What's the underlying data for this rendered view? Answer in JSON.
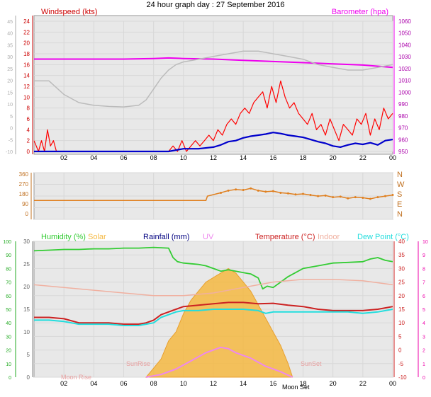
{
  "page_title": "24 hour graph day : 27 September 2016",
  "colors": {
    "wind": "#ff0000",
    "gust_tail": "#ee0000",
    "wind_avg": "#0000cc",
    "baro": "#ee00ee",
    "temp_in": "#bbbbbb",
    "wdir": "#e08020",
    "humidity": "#33cc33",
    "solar": "#f5b942",
    "rain": "#000080",
    "uv": "#ee88ee",
    "temperature": "#cc2222",
    "indoor": "#f0b0a0",
    "dewpoint": "#22dddd",
    "grid": "#d8d8d8",
    "panel": "#e8e8e8",
    "left_scale": "#aaaaaa",
    "left_scale_bottom": "#22aa22",
    "right_scale_bottom": "#ee00aa",
    "mid_scale_bottom": "#808080"
  },
  "chart_data": [
    {
      "type": "line",
      "id": "wind-baro",
      "title": "24 hour graph day : 27 September 2016",
      "left_axis_label": "Windspeed (kts)",
      "right_axis_label": "Barometer (hpa)",
      "x_ticks": [
        "02",
        "04",
        "06",
        "08",
        "10",
        "12",
        "14",
        "16",
        "18",
        "20",
        "22",
        "00"
      ],
      "x_range": [
        0,
        24
      ],
      "outer_left_ticks": [
        "45",
        "40",
        "35",
        "30",
        "25",
        "20",
        "15",
        "10",
        "5",
        "0",
        "-5",
        "-10"
      ],
      "left_ticks": [
        "24",
        "22",
        "20",
        "18",
        "16",
        "14",
        "12",
        "10",
        "8",
        "6",
        "4",
        "2",
        "0"
      ],
      "left_range": [
        0,
        24
      ],
      "right_ticks": [
        "1060",
        "1050",
        "1040",
        "1030",
        "1020",
        "1010",
        "1000",
        "990",
        "980",
        "970",
        "960",
        "950"
      ],
      "right_range": [
        950,
        1060
      ],
      "series": [
        {
          "name": "Windspeed (kts)",
          "key": "wind",
          "x": [
            0,
            0.3,
            0.5,
            0.7,
            0.9,
            1.1,
            1.3,
            1.5,
            1.6,
            9.0,
            9.3,
            9.6,
            9.9,
            10.2,
            10.5,
            10.8,
            11.1,
            11.4,
            11.7,
            12.0,
            12.3,
            12.6,
            12.9,
            13.2,
            13.5,
            13.8,
            14.1,
            14.4,
            14.7,
            15.0,
            15.3,
            15.6,
            15.9,
            16.2,
            16.5,
            16.8,
            17.1,
            17.4,
            17.7,
            18.0,
            18.3,
            18.6,
            18.9,
            19.2,
            19.5,
            19.8,
            20.1,
            20.4,
            20.7,
            21.0,
            21.3,
            21.6,
            21.9,
            22.2,
            22.5,
            22.8,
            23.1,
            23.4,
            23.7,
            24.0
          ],
          "y": [
            2,
            0,
            2,
            0,
            4,
            1,
            2,
            0,
            0,
            0,
            1,
            0,
            2,
            0,
            1,
            2,
            1,
            2,
            3,
            2,
            4,
            3,
            5,
            6,
            5,
            7,
            8,
            7,
            9,
            10,
            11,
            8,
            12,
            9,
            13,
            10,
            8,
            9,
            7,
            6,
            5,
            7,
            4,
            5,
            3,
            6,
            4,
            2,
            5,
            4,
            3,
            6,
            5,
            7,
            3,
            6,
            4,
            8,
            6,
            7
          ]
        },
        {
          "name": "Wind average",
          "key": "wind_avg",
          "x": [
            0,
            9.0,
            10.0,
            11.0,
            12.0,
            12.5,
            13.0,
            13.5,
            14.0,
            14.5,
            15.0,
            15.5,
            16.0,
            16.5,
            17.0,
            17.5,
            18.0,
            18.5,
            19.0,
            19.5,
            20.0,
            20.5,
            21.0,
            21.5,
            22.0,
            22.5,
            23.0,
            23.5,
            24.0
          ],
          "y": [
            0,
            0,
            0.5,
            0.5,
            0.8,
            1.2,
            1.8,
            2.0,
            2.5,
            2.8,
            3.0,
            3.2,
            3.5,
            3.3,
            3.0,
            2.8,
            2.6,
            2.2,
            1.8,
            1.5,
            1.0,
            0.8,
            1.2,
            1.5,
            1.3,
            1.6,
            1.2,
            2.0,
            2.2
          ]
        },
        {
          "name": "Barometer (hpa)",
          "key": "baro",
          "x": [
            0,
            2,
            4,
            6,
            8,
            9,
            10,
            12,
            14,
            16,
            18,
            20,
            22,
            24
          ],
          "y": [
            1028,
            1028,
            1028,
            1028,
            1028.5,
            1029,
            1028.5,
            1028,
            1027,
            1026,
            1025,
            1024,
            1023,
            1021
          ]
        },
        {
          "name": "Indoor",
          "key": "temp_in",
          "x": [
            0,
            1,
            2,
            3,
            4,
            5,
            6,
            7,
            7.5,
            8,
            8.5,
            9,
            9.5,
            10,
            11,
            12,
            13,
            14,
            15,
            16,
            17,
            18,
            19,
            20,
            21,
            22,
            23,
            24
          ],
          "y": [
            13,
            13,
            10.5,
            9,
            8.5,
            8.3,
            8.2,
            8.5,
            9.5,
            11.5,
            13.5,
            15,
            16,
            16.5,
            17,
            17.5,
            18,
            18.5,
            18.5,
            18,
            17.5,
            17,
            16,
            15.5,
            15,
            15,
            15.5,
            16
          ]
        }
      ]
    },
    {
      "type": "scatter",
      "id": "wind-direction",
      "left_ticks": [
        "360",
        "270",
        "180",
        "90",
        "0"
      ],
      "left_range": [
        0,
        360
      ],
      "right_ticks": [
        "N",
        "W",
        "S",
        "E",
        "N"
      ],
      "x_range": [
        0,
        24
      ],
      "series": [
        {
          "name": "Wind direction",
          "key": "wdir",
          "x": [
            0,
            2,
            4,
            6,
            8,
            10,
            11.5,
            11.6,
            12.5,
            13,
            13.5,
            14,
            14.5,
            15,
            15.5,
            16,
            16.5,
            17,
            17.5,
            18,
            18.5,
            19,
            19.5,
            20,
            20.5,
            21,
            21.5,
            22,
            22.5,
            23,
            23.5,
            24
          ],
          "y": [
            120,
            120,
            120,
            120,
            120,
            120,
            120,
            160,
            190,
            210,
            220,
            215,
            230,
            210,
            200,
            205,
            190,
            185,
            175,
            180,
            170,
            160,
            165,
            150,
            155,
            140,
            150,
            145,
            135,
            150,
            160,
            170
          ]
        }
      ]
    },
    {
      "type": "line",
      "id": "multi",
      "legend": [
        {
          "label": "Humidity (%)",
          "key": "humidity"
        },
        {
          "label": "Solar",
          "key": "solar"
        },
        {
          "label": "Rainfall (mm)",
          "key": "rain"
        },
        {
          "label": "UV",
          "key": "uv"
        },
        {
          "label": "Temperature (°C)",
          "key": "temperature"
        },
        {
          "label": "Indoor",
          "key": "indoor"
        },
        {
          "label": "Dew Point (°C)",
          "key": "dewpoint"
        }
      ],
      "x_ticks": [
        "02",
        "04",
        "06",
        "08",
        "10",
        "12",
        "14",
        "16",
        "18",
        "20",
        "22",
        "00"
      ],
      "x_range": [
        0,
        24
      ],
      "outer_left_ticks": [
        "100",
        "90",
        "80",
        "70",
        "60",
        "50",
        "40",
        "30",
        "20",
        "10",
        "0"
      ],
      "left_ticks": [
        "30",
        "25",
        "20",
        "15",
        "10",
        "5",
        "0"
      ],
      "right_ticks": [
        "40",
        "35",
        "30",
        "25",
        "20",
        "15",
        "10",
        "5",
        "0",
        "-5",
        "-10"
      ],
      "right_range": [
        -10,
        40
      ],
      "outer_right_ticks": [
        "10",
        "9",
        "8",
        "7",
        "6",
        "5",
        "4",
        "3",
        "2",
        "1",
        "0"
      ],
      "annotations": [
        "Moon Rise",
        "SunRise",
        "SunSet",
        "Moon Set"
      ],
      "series": [
        {
          "name": "Humidity (%)",
          "key": "humidity",
          "x": [
            0,
            1,
            2,
            3,
            4,
            5,
            6,
            7,
            8,
            9,
            9.3,
            9.6,
            10,
            10.5,
            11,
            11.5,
            12,
            12.5,
            13,
            13.5,
            14,
            14.5,
            15,
            15.3,
            15.6,
            16,
            16.5,
            17,
            17.5,
            18,
            19,
            20,
            21,
            22,
            22.5,
            23,
            23.5,
            24
          ],
          "y": [
            93,
            93.5,
            94,
            94,
            94.5,
            94.5,
            95,
            95,
            95.5,
            95,
            88,
            85,
            84,
            83.5,
            83,
            82,
            80,
            78,
            79,
            78,
            77,
            76,
            73,
            65,
            67,
            66,
            70,
            74,
            77,
            80,
            82,
            84,
            84.5,
            85,
            87,
            88,
            86,
            85
          ]
        },
        {
          "name": "Solar",
          "key": "solar",
          "x": [
            7.5,
            8,
            8.5,
            9,
            9.5,
            10,
            10.5,
            11,
            11.5,
            12,
            12.5,
            13,
            13.5,
            14,
            14.5,
            15,
            15.5,
            16,
            16.5,
            17,
            17.3
          ],
          "y": [
            0,
            2,
            4,
            8,
            10,
            14,
            17,
            19,
            21,
            22,
            23,
            24,
            23,
            21,
            19,
            16,
            13,
            10,
            7,
            3,
            0
          ]
        },
        {
          "name": "UV",
          "key": "uv",
          "x": [
            7.5,
            8.5,
            9.5,
            10.5,
            11.5,
            12,
            12.5,
            13,
            13.5,
            14.5,
            15.5,
            16.5,
            17.3
          ],
          "y": [
            -10,
            -9,
            -7,
            -4,
            -1,
            0,
            1,
            0.5,
            -1,
            -3,
            -6,
            -8,
            -10
          ]
        },
        {
          "name": "Temperature (°C)",
          "key": "temperature",
          "x": [
            0,
            1,
            2,
            3,
            4,
            5,
            6,
            7,
            7.5,
            8,
            8.5,
            9,
            9.5,
            10,
            11,
            12,
            13,
            14,
            15,
            16,
            17,
            18,
            19,
            20,
            21,
            22,
            23,
            24
          ],
          "y": [
            12,
            12,
            11.5,
            10,
            10,
            10,
            9.5,
            9.5,
            10,
            11,
            13,
            14,
            15,
            16,
            16.5,
            17,
            17.5,
            17.5,
            17,
            17.2,
            16.5,
            16,
            15,
            14.5,
            14.5,
            14.5,
            15,
            16
          ]
        },
        {
          "name": "Indoor",
          "key": "indoor",
          "x": [
            0,
            2,
            4,
            6,
            8,
            10,
            12,
            14,
            16,
            18,
            20,
            22,
            24
          ],
          "y": [
            24,
            23,
            22,
            21,
            20,
            20,
            21,
            23,
            25,
            26,
            26,
            25.5,
            24
          ]
        },
        {
          "name": "Dew Point (°C)",
          "key": "dewpoint",
          "x": [
            0,
            1,
            2,
            3,
            4,
            5,
            6,
            7,
            7.5,
            8,
            8.5,
            9,
            9.5,
            10,
            11,
            12,
            13,
            14,
            15,
            15.5,
            16,
            17,
            18,
            19,
            20,
            21,
            22,
            23,
            24
          ],
          "y": [
            11,
            11,
            10.5,
            9.5,
            9.5,
            9.5,
            9,
            9,
            9.5,
            10,
            12,
            13,
            14,
            14.5,
            14.5,
            15,
            15,
            15,
            14.5,
            13.5,
            14,
            14,
            14,
            14,
            14,
            14,
            13.5,
            14,
            15
          ]
        }
      ]
    }
  ]
}
